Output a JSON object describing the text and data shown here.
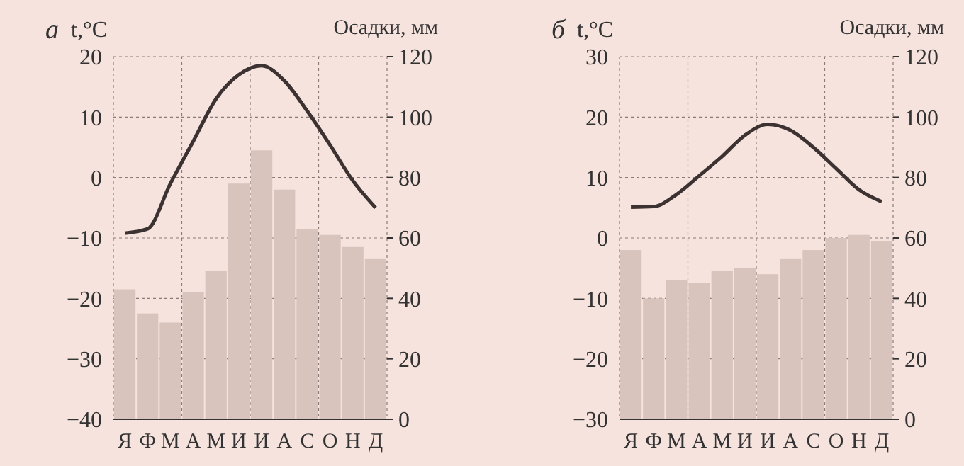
{
  "chart_data": [
    {
      "type": "bar",
      "title": "а",
      "ylabel": "t,°C",
      "y2label": "Осадки, мм",
      "categories": [
        "Я",
        "Ф",
        "М",
        "А",
        "М",
        "И",
        "И",
        "А",
        "С",
        "О",
        "Н",
        "Д"
      ],
      "series": [
        {
          "axis": "y2",
          "color": "#d9c3bd",
          "values": [
            43,
            35,
            32,
            42,
            49,
            78,
            89,
            76,
            63,
            61,
            57,
            53
          ]
        },
        {
          "type": "line",
          "axis": "y",
          "color": "#3d3232",
          "values": [
            -9.2,
            -8.5,
            -1,
            6,
            13,
            17,
            18.5,
            16,
            11,
            5.4,
            -0.5,
            -5
          ]
        }
      ],
      "ylim": [
        -40,
        20
      ],
      "yticks": [
        -40,
        -30,
        -20,
        -10,
        0,
        10,
        20
      ],
      "y2lim": [
        0,
        120
      ],
      "y2ticks": [
        0,
        20,
        40,
        60,
        80,
        100,
        120
      ],
      "grid": true,
      "marker": "none",
      "line_style": "solid"
    },
    {
      "type": "bar",
      "title": "б",
      "ylabel": "t,°C",
      "y2label": "Осадки, мм",
      "categories": [
        "Я",
        "Ф",
        "М",
        "А",
        "М",
        "И",
        "И",
        "А",
        "С",
        "О",
        "Н",
        "Д"
      ],
      "series": [
        {
          "axis": "y2",
          "color": "#d9c3bd",
          "values": [
            56,
            40,
            46,
            45,
            49,
            50,
            48,
            53,
            56,
            60,
            61,
            59
          ]
        },
        {
          "type": "line",
          "axis": "y",
          "color": "#3d3232",
          "values": [
            5.1,
            5.2,
            7.2,
            10.3,
            13.5,
            17,
            18.8,
            17.8,
            15,
            11.5,
            8,
            6
          ]
        }
      ],
      "ylim": [
        -30,
        30
      ],
      "yticks": [
        -30,
        -20,
        -10,
        0,
        10,
        20,
        30
      ],
      "y2lim": [
        0,
        120
      ],
      "y2ticks": [
        0,
        20,
        40,
        60,
        80,
        100,
        120
      ],
      "grid": true,
      "marker": "none",
      "line_style": "solid"
    }
  ]
}
